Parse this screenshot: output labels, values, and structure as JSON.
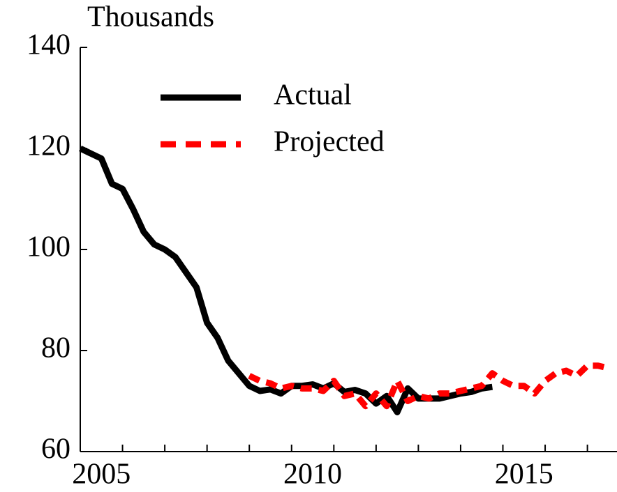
{
  "chart_data": {
    "type": "line",
    "y_label": "Thousands",
    "xlim": [
      2005,
      2017.7
    ],
    "ylim": [
      60,
      140
    ],
    "yticks": [
      60,
      80,
      100,
      120,
      140
    ],
    "xticks": [
      {
        "value": 2006,
        "label": null
      },
      {
        "value": 2007,
        "label": null
      },
      {
        "value": 2008,
        "label": null
      },
      {
        "value": 2009,
        "label": null
      },
      {
        "value": 2010,
        "label": null
      },
      {
        "value": 2011,
        "label": null
      },
      {
        "value": 2012,
        "label": null
      },
      {
        "value": 2013,
        "label": null
      },
      {
        "value": 2014,
        "label": null
      },
      {
        "value": 2015,
        "label": null
      },
      {
        "value": 2016,
        "label": null
      },
      {
        "value": 2017,
        "label": null
      }
    ],
    "xtick_labels": [
      {
        "value": 2005.5,
        "label": "2005"
      },
      {
        "value": 2010.5,
        "label": "2010"
      },
      {
        "value": 2015.5,
        "label": "2015"
      }
    ],
    "legend": "upper-center",
    "series": [
      {
        "name": "Actual",
        "color": "#000000",
        "style": "solid",
        "x": [
          2005,
          2005.25,
          2005.5,
          2005.75,
          2006,
          2006.25,
          2006.5,
          2006.75,
          2007,
          2007.25,
          2007.5,
          2007.75,
          2008,
          2008.25,
          2008.5,
          2008.75,
          2009,
          2009.25,
          2009.5,
          2009.75,
          2010,
          2010.25,
          2010.5,
          2010.75,
          2011,
          2011.25,
          2011.5,
          2011.75,
          2012,
          2012.25,
          2012.5,
          2012.75,
          2013,
          2013.25,
          2013.5,
          2013.75,
          2014,
          2014.25,
          2014.5,
          2014.75
        ],
        "values": [
          120,
          119,
          118,
          113,
          112,
          108,
          103.5,
          101,
          100,
          98.5,
          95.5,
          92.5,
          85.5,
          82.5,
          78,
          75.5,
          73,
          72,
          72.3,
          71.5,
          73,
          73,
          73.3,
          72.5,
          73.5,
          71.8,
          72.2,
          71.5,
          69.5,
          71,
          67.8,
          72.5,
          70.5,
          70.5,
          70.5,
          71,
          71.5,
          71.8,
          72.5,
          72.8
        ]
      },
      {
        "name": "Projected",
        "color": "#ff0000",
        "style": "dashed",
        "x": [
          2009,
          2009.25,
          2009.5,
          2009.75,
          2010,
          2010.25,
          2010.5,
          2010.75,
          2011,
          2011.25,
          2011.5,
          2011.75,
          2012,
          2012.25,
          2012.5,
          2012.75,
          2013,
          2013.25,
          2013.5,
          2013.75,
          2014,
          2014.25,
          2014.5,
          2014.75,
          2015,
          2015.25,
          2015.5,
          2015.75,
          2016,
          2016.25,
          2016.5,
          2016.75,
          2017,
          2017.25,
          2017.5
        ],
        "values": [
          75,
          74,
          73.5,
          72.5,
          73,
          72.5,
          72.5,
          72,
          74,
          71,
          71.5,
          69,
          71.5,
          69,
          74,
          70,
          71,
          70.5,
          71.5,
          71.5,
          72,
          72.5,
          73,
          75.5,
          74,
          73,
          73,
          71.5,
          74,
          75.5,
          76,
          75,
          77,
          77,
          76.5
        ]
      }
    ]
  }
}
